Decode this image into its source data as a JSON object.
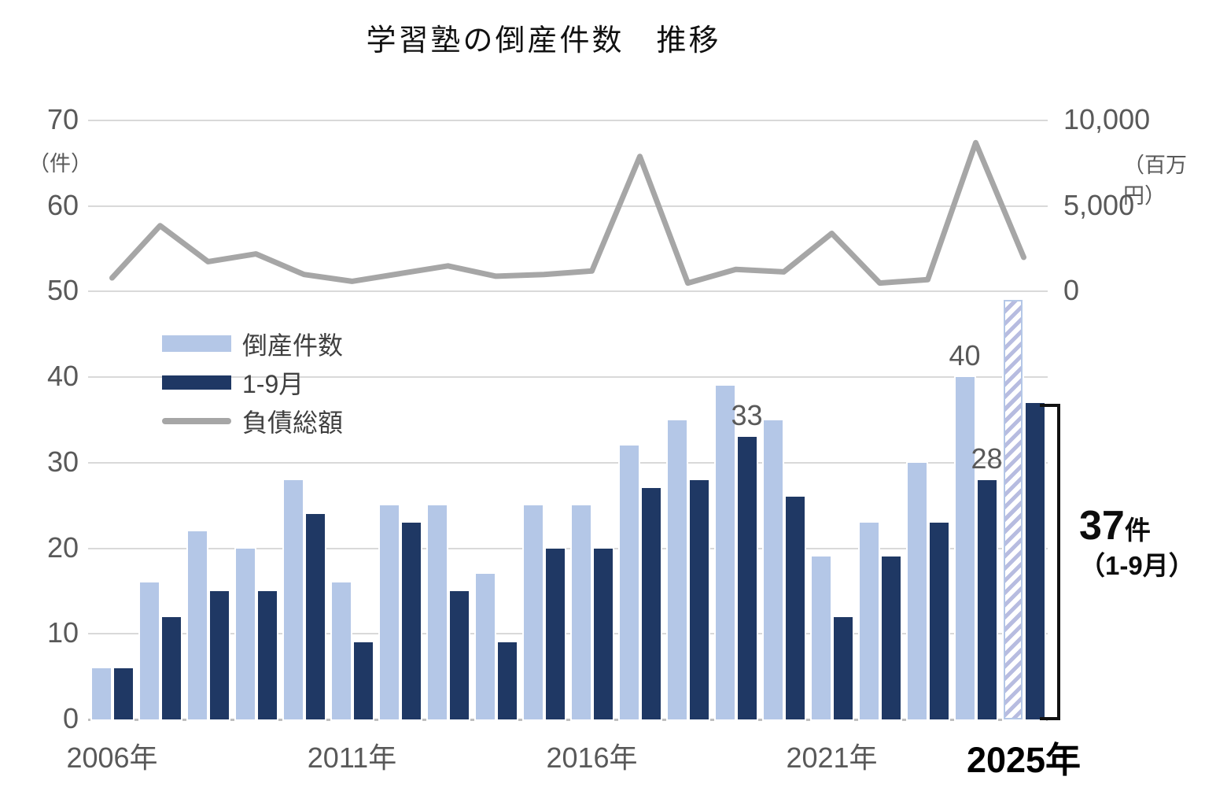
{
  "chart": {
    "title": "学習塾の倒産件数　推移",
    "left_axis": {
      "unit_label": "（件）",
      "ticks": [
        0,
        10,
        20,
        30,
        40,
        50,
        60,
        70
      ]
    },
    "right_axis": {
      "unit_label": "（百万円）",
      "ticks": [
        {
          "label": "0",
          "value": 0
        },
        {
          "label": "5,000",
          "value": 5000
        },
        {
          "label": "10,000",
          "value": 10000
        }
      ]
    },
    "x_ticks": [
      {
        "label": "2006年",
        "index": 0,
        "emphasis": false
      },
      {
        "label": "2011年",
        "index": 5,
        "emphasis": false
      },
      {
        "label": "2016年",
        "index": 10,
        "emphasis": false
      },
      {
        "label": "2021年",
        "index": 15,
        "emphasis": false
      },
      {
        "label": "2025年",
        "index": 19,
        "emphasis": true
      }
    ],
    "legend": [
      {
        "label": "倒産件数",
        "swatch": "light-bar"
      },
      {
        "label": "1-9月",
        "swatch": "dark-bar"
      },
      {
        "label": "負債総額",
        "swatch": "line"
      }
    ],
    "annotation_37": {
      "value": "37",
      "unit": "件",
      "period": "（1-9月）"
    },
    "colors": {
      "light_bar": "#b4c7e7",
      "dark_bar": "#1f3864",
      "line": "#a6a6a6",
      "grid": "#d9d9d9",
      "baseline": "#bfbfbf",
      "axis_text": "#595959",
      "legend_text": "#404040",
      "annotation_text": "#0d0d0d",
      "hatch_stripe": "#b7bce0",
      "hatch_border": "#b4c7e7"
    }
  },
  "chart_data": {
    "type": "bar+line",
    "title": "学習塾の倒産件数　推移",
    "categories": [
      "2006",
      "2007",
      "2008",
      "2009",
      "2010",
      "2011",
      "2012",
      "2013",
      "2014",
      "2015",
      "2016",
      "2017",
      "2018",
      "2019",
      "2020",
      "2021",
      "2022",
      "2023",
      "2024",
      "2025"
    ],
    "series": [
      {
        "name": "倒産件数",
        "type": "bar",
        "axis": "left",
        "values": [
          6,
          16,
          22,
          20,
          28,
          16,
          25,
          25,
          17,
          25,
          25,
          32,
          35,
          39,
          35,
          19,
          23,
          30,
          40,
          49
        ],
        "hatched_indices": [
          19
        ]
      },
      {
        "name": "1-9月",
        "type": "bar",
        "axis": "left",
        "values": [
          6,
          12,
          15,
          15,
          24,
          9,
          23,
          15,
          9,
          20,
          20,
          27,
          28,
          33,
          26,
          12,
          19,
          23,
          28,
          37
        ]
      },
      {
        "name": "負債総額",
        "type": "line",
        "axis": "right",
        "values": [
          800,
          3850,
          1750,
          2200,
          1000,
          600,
          1050,
          1500,
          900,
          1000,
          1200,
          7900,
          500,
          1300,
          1150,
          3400,
          500,
          700,
          8700,
          2000
        ]
      }
    ],
    "data_labels": [
      {
        "series": 1,
        "index": 13,
        "text": "33"
      },
      {
        "series": 0,
        "index": 18,
        "text": "40"
      },
      {
        "series": 1,
        "index": 18,
        "text": "28"
      }
    ],
    "left_ylim": [
      0,
      70
    ],
    "right_ylim": [
      0,
      10000
    ],
    "grid": true,
    "legend_position": "upper-left-inside"
  }
}
